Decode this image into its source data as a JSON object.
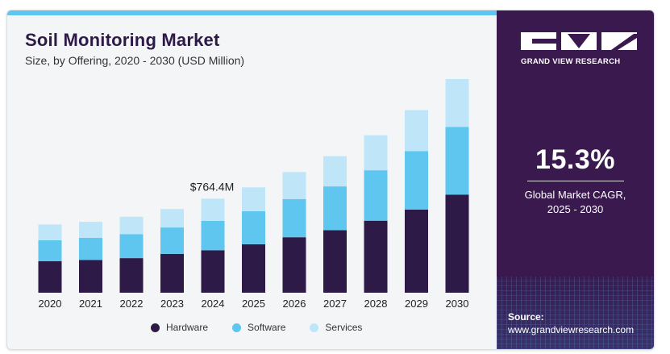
{
  "header": {
    "title": "Soil Monitoring Market",
    "subtitle": "Size, by Offering, 2020 - 2030 (USD Million)"
  },
  "sidebar": {
    "brand": "GRAND VIEW RESEARCH",
    "cagr_value": "15.3%",
    "cagr_label_line1": "Global Market CAGR,",
    "cagr_label_line2": "2025 - 2030",
    "source_label": "Source:",
    "source_url": "www.grandviewresearch.com"
  },
  "colors": {
    "hardware": "#2e1a47",
    "software": "#5ec6ef",
    "services": "#bfe6f8",
    "accent_bar": "#5ec6ef",
    "sidebar_bg": "#3a1a4e"
  },
  "chart_data": {
    "type": "bar",
    "stacked": true,
    "categories": [
      "2020",
      "2021",
      "2022",
      "2023",
      "2024",
      "2025",
      "2026",
      "2027",
      "2028",
      "2029",
      "2030"
    ],
    "series": [
      {
        "name": "Hardware",
        "values": [
          256,
          265,
          281,
          316,
          345,
          394,
          451,
          508,
          585,
          675,
          796
        ]
      },
      {
        "name": "Software",
        "values": [
          170,
          181,
          195,
          214,
          239,
          268,
          309,
          356,
          410,
          475,
          550
        ]
      },
      {
        "name": "Services",
        "values": [
          128,
          130,
          141,
          150,
          180,
          194,
          220,
          246,
          284,
          334,
          390
        ]
      }
    ],
    "annotations": [
      {
        "category": "2024",
        "text": "$764.4M"
      }
    ],
    "legend_position": "bottom",
    "grid": false,
    "ylim": [
      0,
      1736
    ]
  }
}
